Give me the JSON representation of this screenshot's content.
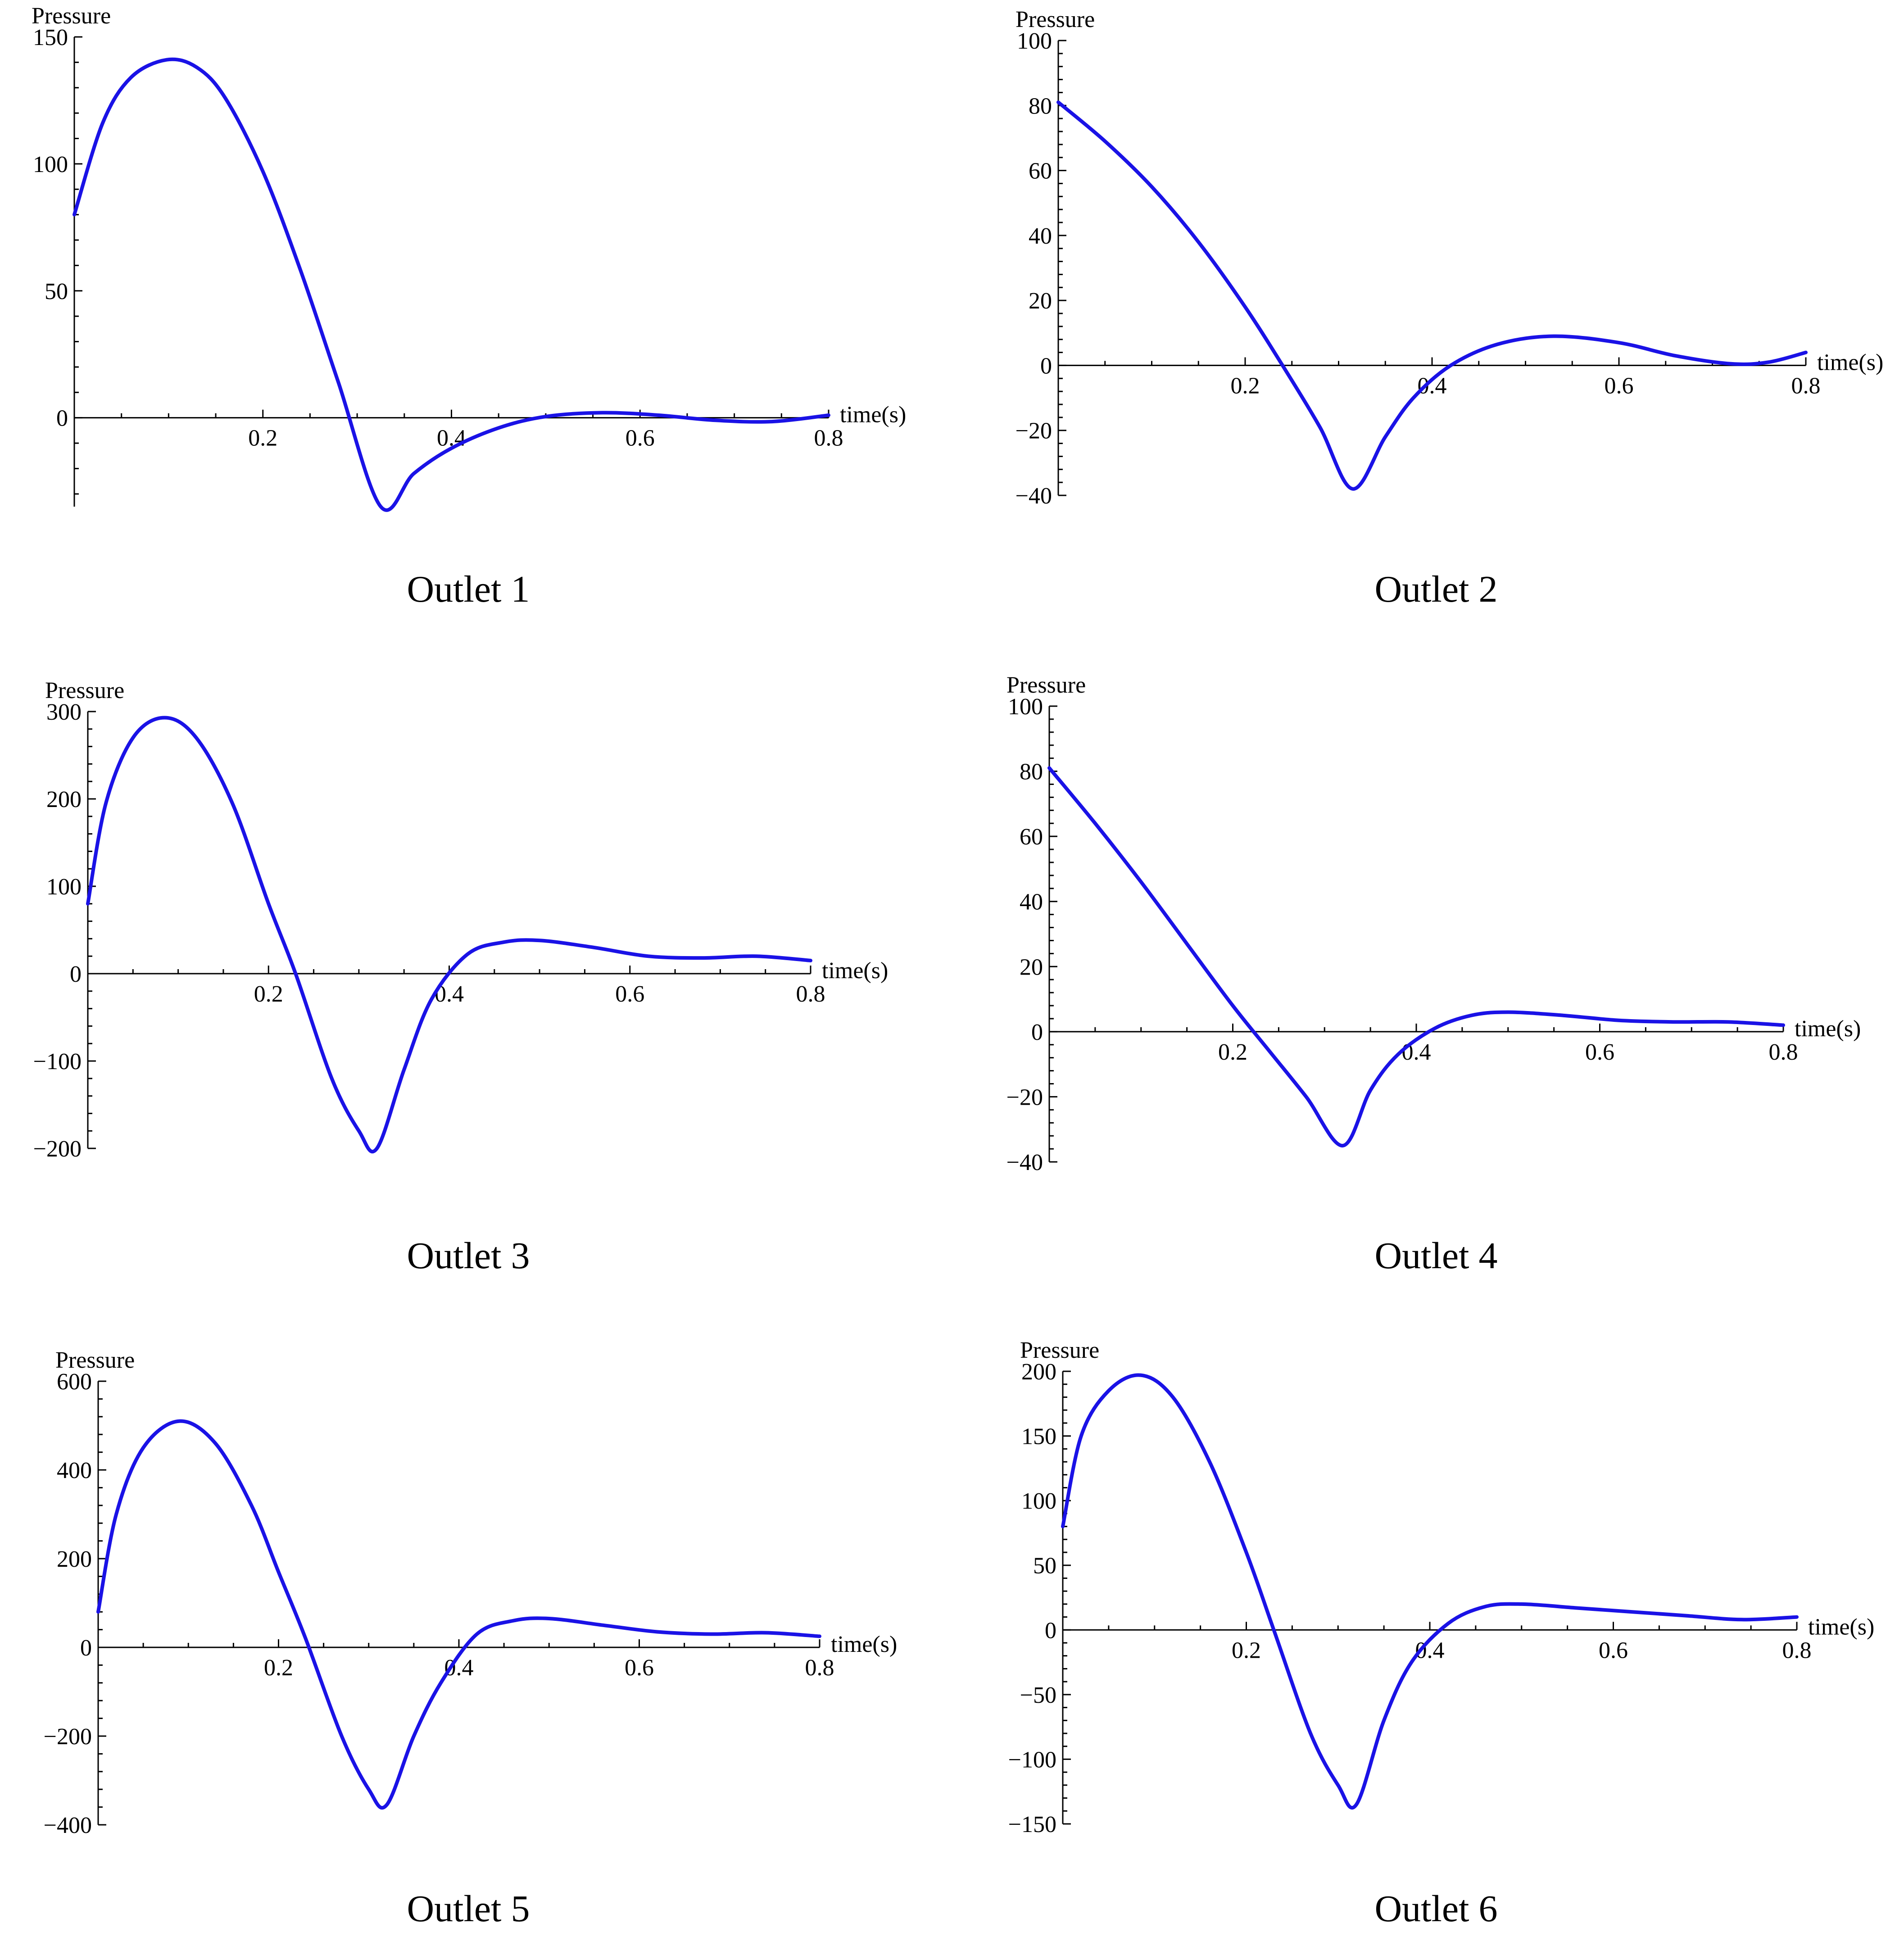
{
  "line_color": "#1a12e6",
  "axis_color": "#000000",
  "chart_data": [
    {
      "type": "line",
      "caption": "Outlet 1",
      "ylabel": "Pressure",
      "xlabel": "time(s)",
      "xlim": [
        0,
        0.8
      ],
      "ylim": [
        -35,
        150
      ],
      "xticks": [
        0.2,
        0.4,
        0.6,
        0.8
      ],
      "yticks": [
        0,
        50,
        100,
        150
      ],
      "series": [
        {
          "x": [
            0,
            0.03,
            0.06,
            0.098,
            0.13,
            0.16,
            0.2,
            0.24,
            0.28,
            0.325,
            0.36,
            0.4,
            0.45,
            0.5,
            0.56,
            0.62,
            0.68,
            0.74,
            0.8
          ],
          "y": [
            80,
            116,
            134,
            141,
            138,
            126,
            97,
            58,
            14,
            -35,
            -22,
            -12,
            -4,
            0.5,
            2,
            1,
            -1,
            -1.5,
            1
          ]
        }
      ]
    },
    {
      "type": "line",
      "caption": "Outlet 2",
      "ylabel": "Pressure",
      "xlabel": "time(s)",
      "xlim": [
        0,
        0.8
      ],
      "ylim": [
        -40,
        100
      ],
      "xticks": [
        0.2,
        0.4,
        0.6,
        0.8
      ],
      "yticks": [
        -40,
        -20,
        0,
        20,
        40,
        60,
        80,
        100
      ],
      "series": [
        {
          "x": [
            0,
            0.05,
            0.1,
            0.15,
            0.2,
            0.24,
            0.28,
            0.315,
            0.35,
            0.38,
            0.42,
            0.47,
            0.53,
            0.6,
            0.66,
            0.72,
            0.76,
            0.8
          ],
          "y": [
            81,
            69,
            55,
            38,
            18,
            0,
            -19,
            -38,
            -22,
            -10,
            0,
            6.5,
            9,
            7,
            3,
            0.5,
            1,
            4
          ]
        }
      ]
    },
    {
      "type": "line",
      "caption": "Outlet 3",
      "ylabel": "Pressure",
      "xlabel": "time(s)",
      "xlim": [
        0,
        0.8
      ],
      "ylim": [
        -200,
        300
      ],
      "xticks": [
        0.2,
        0.4,
        0.6,
        0.8
      ],
      "yticks": [
        -200,
        -100,
        0,
        100,
        200,
        300
      ],
      "series": [
        {
          "x": [
            0,
            0.02,
            0.05,
            0.085,
            0.12,
            0.16,
            0.2,
            0.23,
            0.27,
            0.3,
            0.32,
            0.35,
            0.38,
            0.42,
            0.46,
            0.5,
            0.56,
            0.62,
            0.68,
            0.74,
            0.8
          ],
          "y": [
            80,
            195,
            270,
            293,
            270,
            195,
            80,
            0,
            -120,
            -180,
            -200,
            -110,
            -30,
            22,
            36,
            38,
            30,
            20,
            18,
            20,
            15
          ]
        }
      ]
    },
    {
      "type": "line",
      "caption": "Outlet 4",
      "ylabel": "Pressure",
      "xlabel": "time(s)",
      "xlim": [
        0,
        0.8
      ],
      "ylim": [
        -40,
        100
      ],
      "xticks": [
        0.2,
        0.4,
        0.6,
        0.8
      ],
      "yticks": [
        -40,
        -20,
        0,
        20,
        40,
        60,
        80,
        100
      ],
      "series": [
        {
          "x": [
            0,
            0.05,
            0.1,
            0.15,
            0.2,
            0.24,
            0.28,
            0.32,
            0.35,
            0.38,
            0.42,
            0.46,
            0.5,
            0.56,
            0.62,
            0.68,
            0.74,
            0.8
          ],
          "y": [
            81,
            64,
            46,
            27,
            8,
            -6,
            -20,
            -35,
            -18,
            -7,
            1,
            5,
            6,
            5,
            3.5,
            3,
            3,
            2
          ]
        }
      ]
    },
    {
      "type": "line",
      "caption": "Outlet 5",
      "ylabel": "Pressure",
      "xlabel": "time(s)",
      "xlim": [
        0,
        0.8
      ],
      "ylim": [
        -400,
        600
      ],
      "xticks": [
        0.2,
        0.4,
        0.6,
        0.8
      ],
      "yticks": [
        -400,
        -200,
        0,
        200,
        400,
        600
      ],
      "series": [
        {
          "x": [
            0,
            0.02,
            0.05,
            0.09,
            0.13,
            0.17,
            0.2,
            0.23,
            0.27,
            0.3,
            0.32,
            0.35,
            0.38,
            0.42,
            0.46,
            0.5,
            0.56,
            0.62,
            0.68,
            0.74,
            0.8
          ],
          "y": [
            80,
            300,
            450,
            510,
            460,
            320,
            170,
            20,
            -200,
            -320,
            -355,
            -200,
            -80,
            30,
            60,
            65,
            50,
            35,
            30,
            33,
            25
          ]
        }
      ]
    },
    {
      "type": "line",
      "caption": "Outlet 6",
      "ylabel": "Pressure",
      "xlabel": "time(s)",
      "xlim": [
        0,
        0.8
      ],
      "ylim": [
        -150,
        200
      ],
      "xticks": [
        0.2,
        0.4,
        0.6,
        0.8
      ],
      "yticks": [
        -150,
        -100,
        -50,
        0,
        50,
        100,
        150,
        200
      ],
      "series": [
        {
          "x": [
            0,
            0.02,
            0.05,
            0.085,
            0.12,
            0.16,
            0.2,
            0.23,
            0.27,
            0.3,
            0.32,
            0.35,
            0.38,
            0.42,
            0.46,
            0.5,
            0.56,
            0.62,
            0.68,
            0.74,
            0.8
          ],
          "y": [
            80,
            150,
            185,
            197,
            180,
            130,
            60,
            0,
            -80,
            -120,
            -135,
            -70,
            -25,
            5,
            18,
            20,
            17,
            14,
            11,
            8,
            10
          ]
        }
      ]
    }
  ]
}
